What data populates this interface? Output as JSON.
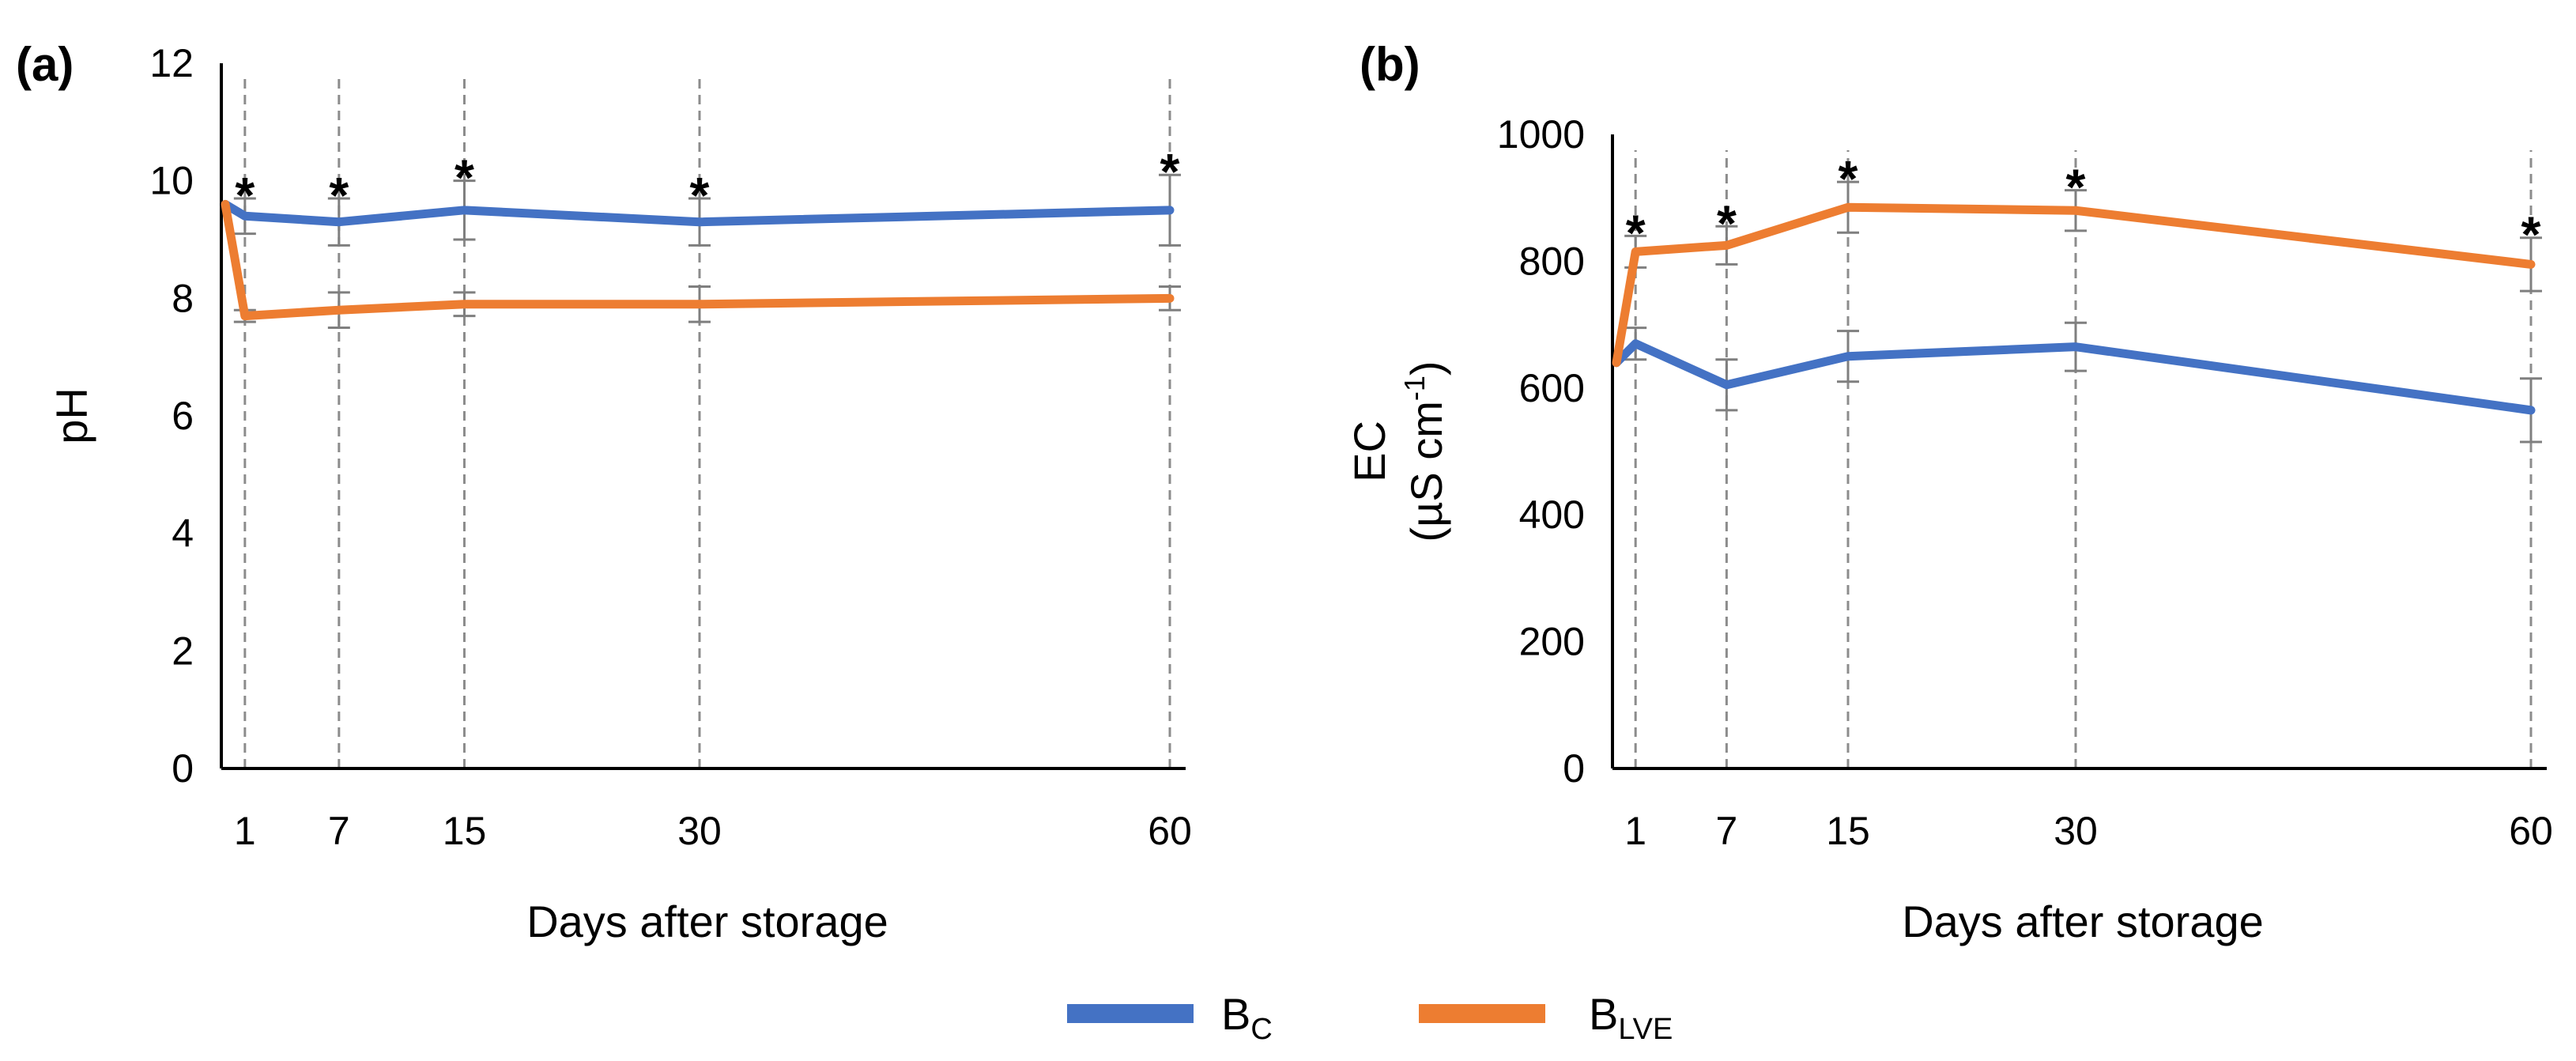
{
  "colors": {
    "bc": "#4472c4",
    "blve": "#ed7d31",
    "axis": "#000000",
    "errorbar": "#7f7f7f",
    "guide": "#8c8c8c"
  },
  "legend": [
    {
      "base": "B",
      "sub": "C",
      "color": "#4472c4"
    },
    {
      "base": "B",
      "sub": "LVE",
      "color": "#ed7d31"
    }
  ],
  "chart_data": [
    {
      "type": "line",
      "panel_label": "(a)",
      "xlabel": "Days after storage",
      "ylabel": "pH",
      "ylabel_parts": [
        "pH"
      ],
      "x": [
        0,
        1,
        7,
        15,
        30,
        60
      ],
      "xticks": [
        1,
        7,
        15,
        30,
        60
      ],
      "xlim": [
        0,
        61
      ],
      "ylim": [
        0,
        12
      ],
      "yticks": [
        0,
        2,
        4,
        6,
        8,
        10,
        12
      ],
      "series": [
        {
          "name": "B_C",
          "values": [
            9.6,
            9.4,
            9.3,
            9.5,
            9.3,
            9.5
          ],
          "errors": [
            0.2,
            0.3,
            0.4,
            0.5,
            0.4,
            0.6
          ]
        },
        {
          "name": "B_LVE",
          "values": [
            9.6,
            7.7,
            7.8,
            7.9,
            7.9,
            8.0
          ],
          "errors": [
            0.2,
            0.1,
            0.3,
            0.2,
            0.3,
            0.2
          ]
        }
      ],
      "significant_at": [
        1,
        7,
        15,
        30,
        60
      ],
      "significance_marker": "*"
    },
    {
      "type": "line",
      "panel_label": "(b)",
      "xlabel": "Days after storage",
      "ylabel": "EC (µS cm-1)",
      "ylabel_parts": [
        "EC",
        "(µS cm",
        "-1",
        ")"
      ],
      "x": [
        0,
        1,
        7,
        15,
        30,
        60
      ],
      "xticks": [
        1,
        7,
        15,
        30,
        60
      ],
      "xlim": [
        0,
        61
      ],
      "ylim": [
        0,
        1000
      ],
      "yticks": [
        0,
        200,
        400,
        600,
        800,
        1000
      ],
      "series": [
        {
          "name": "B_C",
          "values": [
            640,
            670,
            605,
            650,
            665,
            565
          ],
          "errors": [
            30,
            25,
            40,
            40,
            38,
            50
          ]
        },
        {
          "name": "B_LVE",
          "values": [
            640,
            815,
            825,
            885,
            880,
            795
          ],
          "errors": [
            30,
            25,
            30,
            40,
            32,
            42
          ]
        }
      ],
      "significant_at": [
        1,
        7,
        15,
        30,
        60
      ],
      "significance_marker": "*"
    }
  ]
}
